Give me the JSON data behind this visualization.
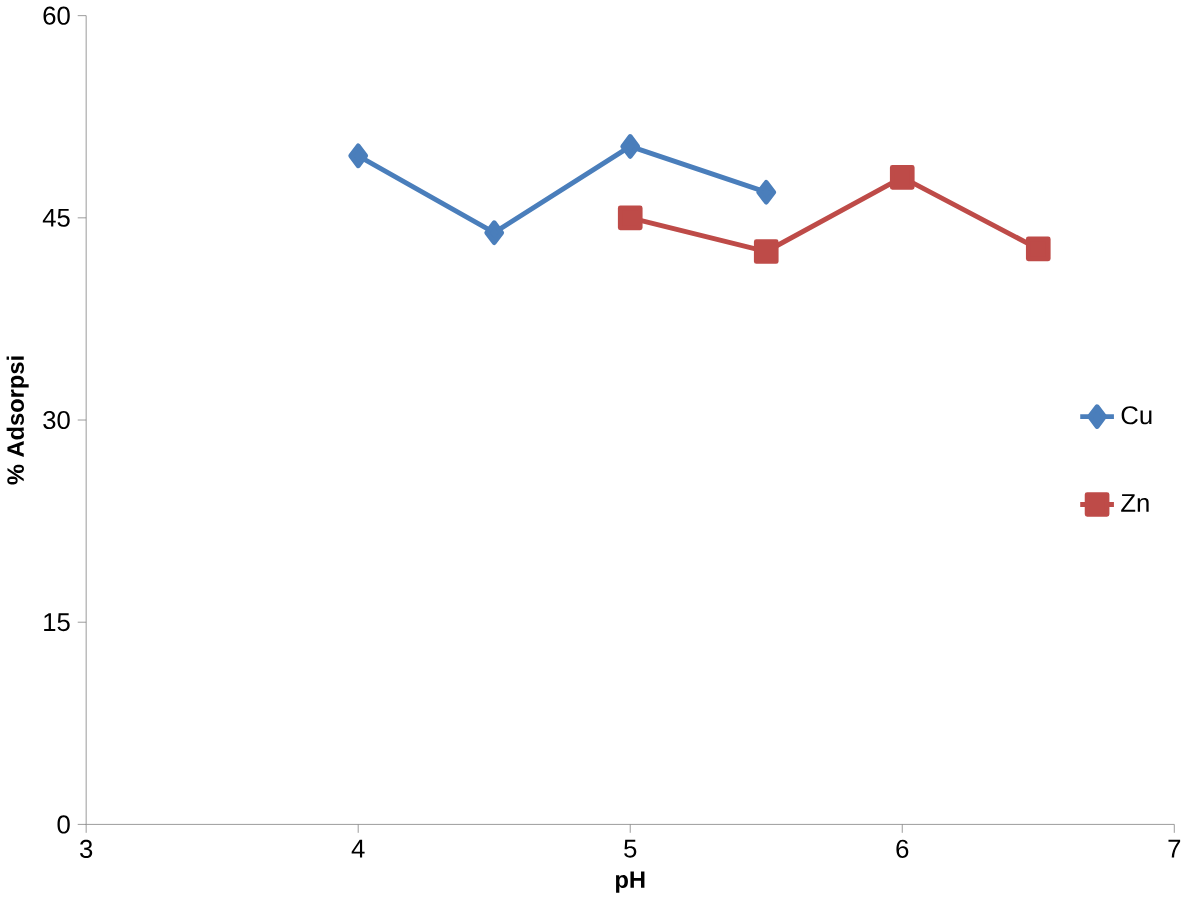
{
  "chart_data": {
    "type": "line",
    "xlabel": "pH",
    "ylabel": "% Adsorpsi",
    "xlim": [
      3,
      7
    ],
    "xticks": [
      3,
      4,
      5,
      6,
      7
    ],
    "ylim": [
      0,
      60
    ],
    "yticks": [
      0,
      15,
      30,
      45,
      60
    ],
    "grid": false,
    "legend": "right",
    "line_style": "solid",
    "series": [
      {
        "name": "Cu",
        "color": "#4a7ebb",
        "marker": "diamond",
        "x": [
          4,
          4.5,
          5,
          5.5
        ],
        "values": [
          49.6,
          43.9,
          50.3,
          46.9
        ]
      },
      {
        "name": "Zn",
        "color": "#be4b48",
        "marker": "square",
        "x": [
          5,
          5.5,
          6,
          6.5
        ],
        "values": [
          45,
          42.5,
          48,
          42.7
        ]
      }
    ]
  }
}
